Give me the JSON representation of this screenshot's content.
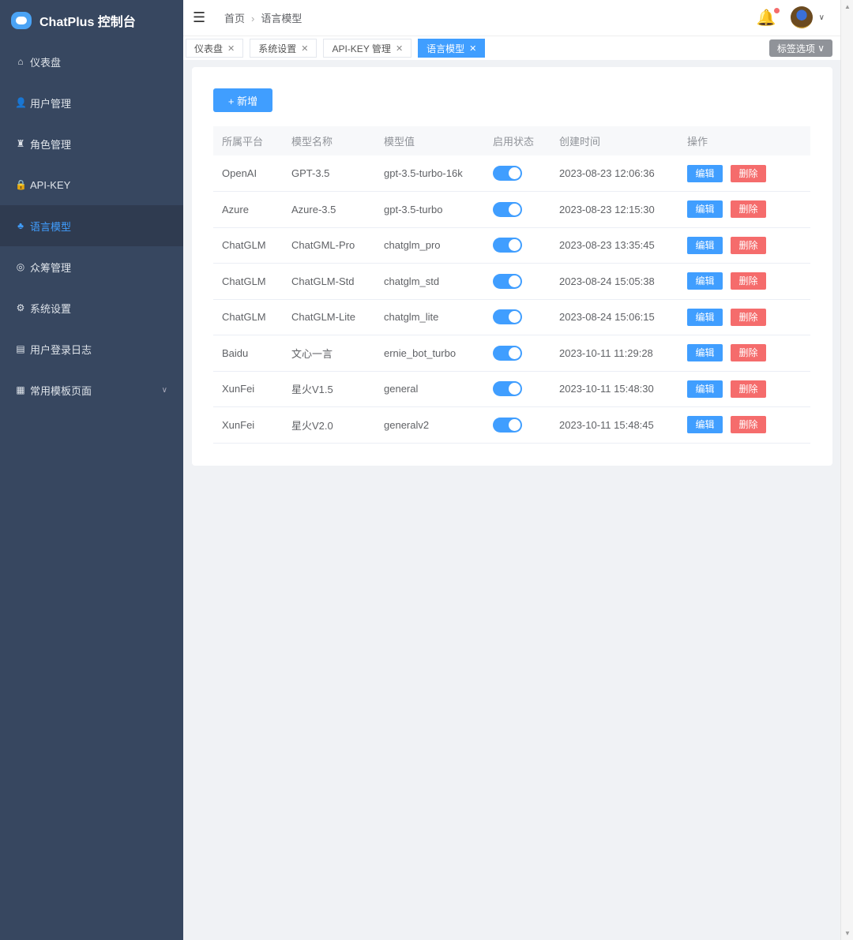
{
  "app": {
    "title": "ChatPlus 控制台"
  },
  "sidebar": {
    "items": [
      {
        "label": "仪表盘",
        "icon": "home-icon",
        "glyph": "⌂"
      },
      {
        "label": "用户管理",
        "icon": "user-icon",
        "glyph": "👤"
      },
      {
        "label": "角色管理",
        "icon": "role-icon",
        "glyph": "♜"
      },
      {
        "label": "API-KEY",
        "icon": "lock-icon",
        "glyph": "🔒"
      },
      {
        "label": "语言模型",
        "icon": "model-icon",
        "glyph": "♣",
        "active": true
      },
      {
        "label": "众筹管理",
        "icon": "medal-icon",
        "glyph": "◎"
      },
      {
        "label": "系统设置",
        "icon": "gear-icon",
        "glyph": "⚙"
      },
      {
        "label": "用户登录日志",
        "icon": "log-icon",
        "glyph": "▤"
      },
      {
        "label": "常用模板页面",
        "icon": "grid-icon",
        "glyph": "▦",
        "expandable": true
      }
    ]
  },
  "header": {
    "breadcrumb": [
      "首页",
      "语言模型"
    ]
  },
  "tabs": {
    "items": [
      {
        "label": "仪表盘"
      },
      {
        "label": "系统设置"
      },
      {
        "label": "API-KEY 管理"
      },
      {
        "label": "语言模型",
        "active": true
      }
    ],
    "options_label": "标签选项"
  },
  "main": {
    "add_label": "+ 新增",
    "columns": [
      "所属平台",
      "模型名称",
      "模型值",
      "启用状态",
      "创建时间",
      "操作"
    ],
    "edit_label": "编辑",
    "delete_label": "删除",
    "rows": [
      {
        "platform": "OpenAI",
        "name": "GPT-3.5",
        "value": "gpt-3.5-turbo-16k",
        "enabled": true,
        "created": "2023-08-23 12:06:36"
      },
      {
        "platform": "Azure",
        "name": "Azure-3.5",
        "value": "gpt-3.5-turbo",
        "enabled": true,
        "created": "2023-08-23 12:15:30"
      },
      {
        "platform": "ChatGLM",
        "name": "ChatGML-Pro",
        "value": "chatglm_pro",
        "enabled": true,
        "created": "2023-08-23 13:35:45"
      },
      {
        "platform": "ChatGLM",
        "name": "ChatGLM-Std",
        "value": "chatglm_std",
        "enabled": true,
        "created": "2023-08-24 15:05:38"
      },
      {
        "platform": "ChatGLM",
        "name": "ChatGLM-Lite",
        "value": "chatglm_lite",
        "enabled": true,
        "created": "2023-08-24 15:06:15"
      },
      {
        "platform": "Baidu",
        "name": "文心一言",
        "value": "ernie_bot_turbo",
        "enabled": true,
        "created": "2023-10-11 11:29:28"
      },
      {
        "platform": "XunFei",
        "name": "星火V1.5",
        "value": "general",
        "enabled": true,
        "created": "2023-10-11 15:48:30"
      },
      {
        "platform": "XunFei",
        "name": "星火V2.0",
        "value": "generalv2",
        "enabled": true,
        "created": "2023-10-11 15:48:45"
      }
    ]
  },
  "colors": {
    "sidebar": "#374760",
    "primary": "#409eff",
    "danger": "#f56c6c"
  }
}
